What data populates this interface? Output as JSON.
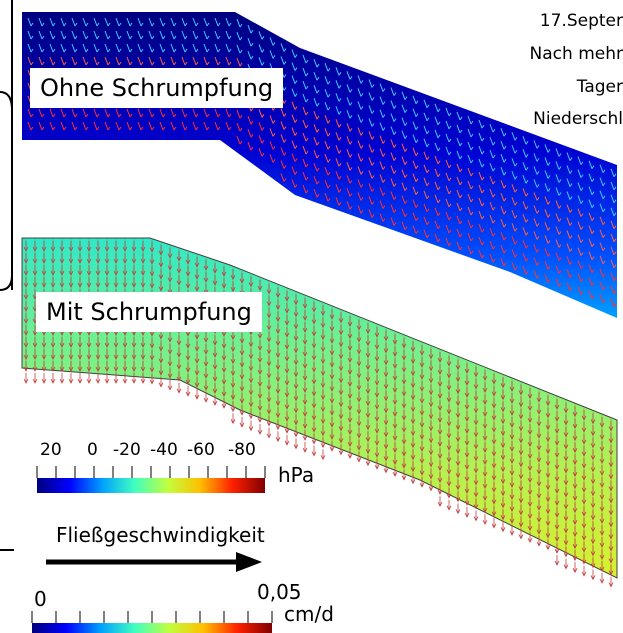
{
  "panels": {
    "top_label": "Ohne Schrumpfung",
    "bottom_label": "Mit Schrumpfung"
  },
  "note": {
    "lines": [
      "17.Septer",
      "Nach mehr",
      "Tager",
      "Niederschl"
    ]
  },
  "pressure_scale": {
    "ticks": [
      "20",
      "0",
      "-20",
      "-40",
      "-60",
      "-80"
    ],
    "unit": "hPa",
    "colors": [
      "#00007f",
      "#0000ff",
      "#00a0ff",
      "#40ffc0",
      "#c0ff40",
      "#ffc000",
      "#ff2000",
      "#800000"
    ]
  },
  "flow": {
    "label": "Fließgeschwindigkeit"
  },
  "velocity_scale": {
    "min": "0",
    "max": "0,05",
    "unit": "cm/d",
    "colors": [
      "#00007f",
      "#0000ff",
      "#00a0ff",
      "#40ffc0",
      "#c0ff40",
      "#ffc000",
      "#ff2000",
      "#800000"
    ]
  }
}
